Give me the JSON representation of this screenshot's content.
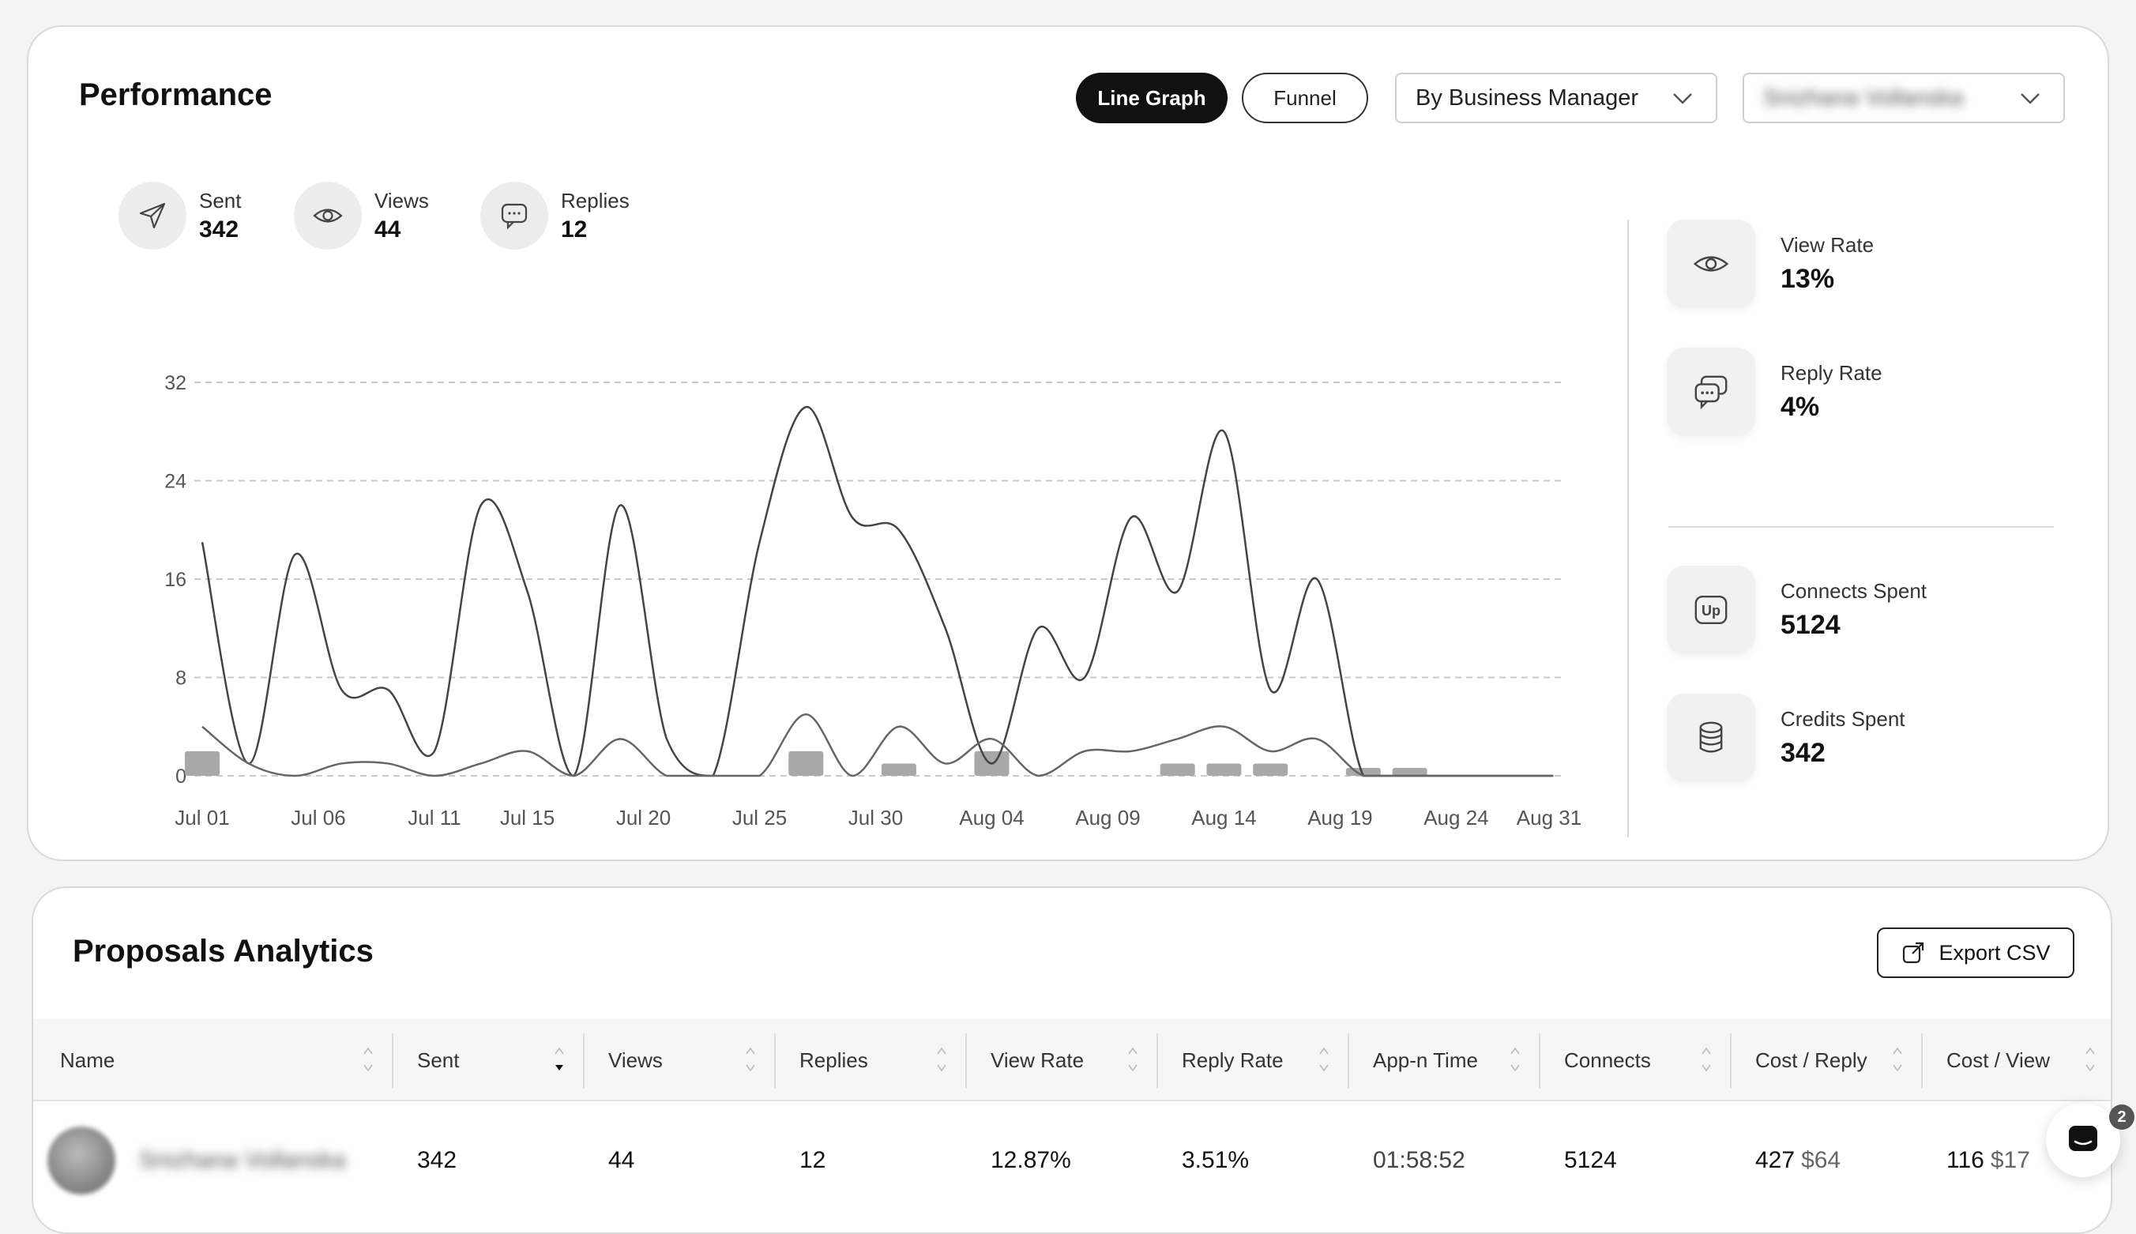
{
  "performance": {
    "title": "Performance",
    "view_toggle": [
      "Line Graph",
      "Funnel"
    ],
    "active_view": "Line Graph",
    "group_by_select": "By Business Manager",
    "manager_select": "Snizhana Vollanska",
    "stats": [
      {
        "label": "Sent",
        "value": "342",
        "icon": "send-icon"
      },
      {
        "label": "Views",
        "value": "44",
        "icon": "eye-icon"
      },
      {
        "label": "Replies",
        "value": "12",
        "icon": "chat-icon"
      }
    ],
    "side_stats": [
      {
        "label": "View Rate",
        "value": "13%",
        "icon": "eye-icon"
      },
      {
        "label": "Reply Rate",
        "value": "4%",
        "icon": "chat-bubbles-icon"
      },
      {
        "label": "Connects Spent",
        "value": "5124",
        "icon": "upwork-icon"
      },
      {
        "label": "Credits Spent",
        "value": "342",
        "icon": "coins-icon"
      }
    ]
  },
  "chart_data": {
    "type": "line",
    "x_labels": [
      "Jul 01",
      "Jul 06",
      "Jul 11",
      "Jul 15",
      "Jul 20",
      "Jul 25",
      "Jul 30",
      "Aug 04",
      "Aug 09",
      "Aug 14",
      "Aug 19",
      "Aug 24",
      "Aug 31"
    ],
    "x_label_days": [
      0,
      5,
      10,
      14,
      19,
      24,
      29,
      34,
      39,
      44,
      49,
      54,
      58
    ],
    "y_ticks": [
      0,
      8,
      16,
      24,
      32
    ],
    "ylim": [
      0,
      32
    ],
    "grid": true,
    "series": [
      {
        "values": [
          19,
          1,
          18,
          7,
          7,
          2,
          22,
          15,
          0,
          22,
          3,
          0,
          19,
          30,
          21,
          20,
          12,
          1,
          12,
          8,
          21,
          15,
          28,
          7,
          16,
          0,
          0,
          0,
          0,
          0,
          0
        ],
        "days": [
          0,
          2,
          4,
          6,
          8,
          10,
          12,
          14,
          16,
          18,
          20,
          22,
          24,
          26,
          28,
          30,
          32,
          34,
          36,
          38,
          40,
          42,
          44,
          46,
          48,
          50,
          52,
          54,
          56,
          58,
          58
        ]
      },
      {
        "values": [
          4,
          1,
          0,
          1,
          1,
          0,
          1,
          2,
          0,
          3,
          0,
          0,
          0,
          5,
          0,
          4,
          1,
          3,
          0,
          2,
          2,
          3,
          4,
          2,
          3,
          0,
          0,
          0,
          0,
          0,
          0
        ],
        "days": [
          0,
          2,
          4,
          6,
          8,
          10,
          12,
          14,
          16,
          18,
          20,
          22,
          24,
          26,
          28,
          30,
          32,
          34,
          36,
          38,
          40,
          42,
          44,
          46,
          48,
          50,
          52,
          54,
          56,
          58,
          58
        ]
      }
    ],
    "bars": [
      {
        "day": 0,
        "value": 2
      },
      {
        "day": 26,
        "value": 2
      },
      {
        "day": 30,
        "value": 1
      },
      {
        "day": 34,
        "value": 2
      },
      {
        "day": 42,
        "value": 1
      },
      {
        "day": 44,
        "value": 1
      },
      {
        "day": 46,
        "value": 1
      },
      {
        "day": 50,
        "value": 0.6
      },
      {
        "day": 52,
        "value": 0.6
      }
    ]
  },
  "proposals": {
    "title": "Proposals Analytics",
    "export_label": "Export CSV",
    "columns": [
      "Name",
      "Sent",
      "Views",
      "Replies",
      "View Rate",
      "Reply Rate",
      "App-n Time",
      "Connects",
      "Cost / Reply",
      "Cost / View"
    ],
    "row": {
      "name": "Snizhana Vollanska",
      "sent": "342",
      "views": "44",
      "replies": "12",
      "view_rate": "12.87%",
      "reply_rate": "3.51%",
      "app_time": "01:58:52",
      "connects": "5124",
      "cost_reply": "427",
      "cost_reply_usd": "$64",
      "cost_view": "116",
      "cost_view_usd": "$17"
    }
  },
  "chat_widget": {
    "badge": "2"
  }
}
